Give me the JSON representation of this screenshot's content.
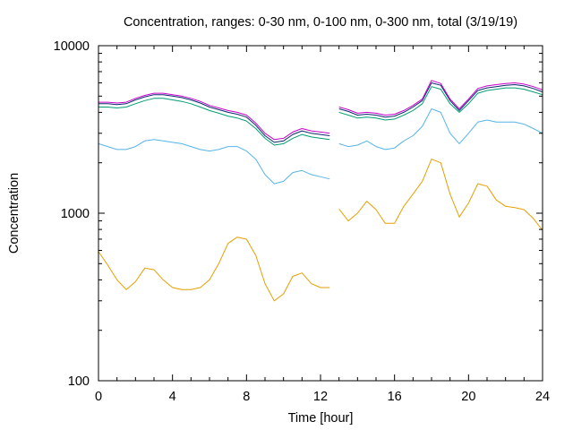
{
  "chart_data": {
    "type": "line",
    "title": "Concentration, ranges: 0-30 nm, 0-100 nm, 0-300 nm, total (3/19/19)",
    "xlabel": "Time [hour]",
    "ylabel": "Concentration",
    "xlim": [
      0,
      24
    ],
    "ylim": [
      100,
      10000
    ],
    "yscale": "log",
    "grid": false,
    "legend": "none",
    "x_ticks": [
      0,
      4,
      8,
      12,
      16,
      20,
      24
    ],
    "y_ticks": [
      100,
      1000,
      10000
    ],
    "x_tick_labels": [
      "0",
      "4",
      "8",
      "12",
      "16",
      "20",
      "24"
    ],
    "y_tick_labels": [
      "100",
      "1000",
      "10000"
    ],
    "series": [
      {
        "color": "#e69f00",
        "x": [
          0,
          0.5,
          1,
          1.5,
          2,
          2.5,
          3,
          3.5,
          4,
          4.5,
          5,
          5.5,
          6,
          6.5,
          7,
          7.5,
          8,
          8.5,
          9,
          9.5,
          10,
          10.5,
          11,
          11.5,
          12,
          12.5,
          null,
          13,
          13.5,
          14,
          14.5,
          15,
          15.5,
          16,
          16.5,
          17,
          17.5,
          18,
          18.5,
          19,
          19.5,
          20,
          20.5,
          21,
          21.5,
          22,
          22.5,
          23,
          23.5,
          24
        ],
        "y": [
          590,
          490,
          400,
          350,
          390,
          470,
          460,
          400,
          360,
          350,
          350,
          360,
          400,
          500,
          660,
          720,
          700,
          560,
          380,
          300,
          330,
          420,
          440,
          380,
          360,
          360,
          null,
          1060,
          900,
          1000,
          1180,
          1050,
          870,
          870,
          1100,
          1300,
          1550,
          2100,
          2000,
          1300,
          950,
          1150,
          1500,
          1450,
          1200,
          1100,
          1080,
          1050,
          930,
          790
        ]
      },
      {
        "color": "#56b4e9",
        "x": [
          0,
          0.5,
          1,
          1.5,
          2,
          2.5,
          3,
          3.5,
          4,
          4.5,
          5,
          5.5,
          6,
          6.5,
          7,
          7.5,
          8,
          8.5,
          9,
          9.5,
          10,
          10.5,
          11,
          11.5,
          12,
          12.5,
          null,
          13,
          13.5,
          14,
          14.5,
          15,
          15.5,
          16,
          16.5,
          17,
          17.5,
          18,
          18.5,
          19,
          19.5,
          20,
          20.5,
          21,
          21.5,
          22,
          22.5,
          23,
          23.5,
          24
        ],
        "y": [
          2600,
          2500,
          2400,
          2400,
          2500,
          2700,
          2750,
          2700,
          2650,
          2600,
          2500,
          2400,
          2350,
          2400,
          2500,
          2500,
          2350,
          2100,
          1700,
          1500,
          1550,
          1750,
          1800,
          1700,
          1650,
          1600,
          null,
          2600,
          2500,
          2550,
          2700,
          2500,
          2400,
          2450,
          2700,
          2900,
          3300,
          4200,
          4000,
          3000,
          2600,
          3000,
          3500,
          3600,
          3500,
          3500,
          3500,
          3400,
          3200,
          3000
        ]
      },
      {
        "color": "#009e73",
        "x": [
          0,
          0.5,
          1,
          1.5,
          2,
          2.5,
          3,
          3.5,
          4,
          4.5,
          5,
          5.5,
          6,
          6.5,
          7,
          7.5,
          8,
          8.5,
          9,
          9.5,
          10,
          10.5,
          11,
          11.5,
          12,
          12.5,
          null,
          13,
          13.5,
          14,
          14.5,
          15,
          15.5,
          16,
          16.5,
          17,
          17.5,
          18,
          18.5,
          19,
          19.5,
          20,
          20.5,
          21,
          21.5,
          22,
          22.5,
          23,
          23.5,
          24
        ],
        "y": [
          4300,
          4300,
          4250,
          4300,
          4500,
          4700,
          4850,
          4850,
          4750,
          4650,
          4500,
          4300,
          4100,
          3950,
          3800,
          3700,
          3550,
          3200,
          2800,
          2550,
          2600,
          2800,
          2950,
          2850,
          2800,
          2750,
          null,
          4000,
          3850,
          3700,
          3750,
          3700,
          3600,
          3650,
          3850,
          4100,
          4500,
          5700,
          5500,
          4500,
          4000,
          4500,
          5200,
          5400,
          5500,
          5600,
          5600,
          5500,
          5300,
          5100
        ]
      },
      {
        "color": "#0a2a6e",
        "x": [
          0,
          0.5,
          1,
          1.5,
          2,
          2.5,
          3,
          3.5,
          4,
          4.5,
          5,
          5.5,
          6,
          6.5,
          7,
          7.5,
          8,
          8.5,
          9,
          9.5,
          10,
          10.5,
          11,
          11.5,
          12,
          12.5,
          null,
          13,
          13.5,
          14,
          14.5,
          15,
          15.5,
          16,
          16.5,
          17,
          17.5,
          18,
          18.5,
          19,
          19.5,
          20,
          20.5,
          21,
          21.5,
          22,
          22.5,
          23,
          23.5,
          24
        ],
        "y": [
          4500,
          4500,
          4450,
          4500,
          4750,
          4950,
          5100,
          5100,
          5000,
          4900,
          4750,
          4550,
          4300,
          4150,
          4000,
          3900,
          3750,
          3350,
          2900,
          2650,
          2700,
          2950,
          3100,
          3000,
          2950,
          2900,
          null,
          4200,
          4050,
          3850,
          3900,
          3850,
          3750,
          3800,
          4000,
          4300,
          4700,
          6000,
          5800,
          4700,
          4100,
          4700,
          5400,
          5600,
          5700,
          5800,
          5850,
          5750,
          5550,
          5300
        ]
      },
      {
        "color": "#cc00cc",
        "x": [
          0,
          0.5,
          1,
          1.5,
          2,
          2.5,
          3,
          3.5,
          4,
          4.5,
          5,
          5.5,
          6,
          6.5,
          7,
          7.5,
          8,
          8.5,
          9,
          9.5,
          10,
          10.5,
          11,
          11.5,
          12,
          12.5,
          null,
          13,
          13.5,
          14,
          14.5,
          15,
          15.5,
          16,
          16.5,
          17,
          17.5,
          18,
          18.5,
          19,
          19.5,
          20,
          20.5,
          21,
          21.5,
          22,
          22.5,
          23,
          23.5,
          24
        ],
        "y": [
          4600,
          4600,
          4550,
          4600,
          4850,
          5050,
          5200,
          5200,
          5100,
          5000,
          4850,
          4650,
          4400,
          4250,
          4100,
          4000,
          3850,
          3450,
          3000,
          2750,
          2800,
          3050,
          3200,
          3100,
          3050,
          3000,
          null,
          4300,
          4150,
          3950,
          4000,
          3950,
          3850,
          3900,
          4100,
          4400,
          4800,
          6200,
          5950,
          4800,
          4200,
          4800,
          5550,
          5750,
          5850,
          5950,
          6000,
          5900,
          5700,
          5450
        ]
      }
    ]
  }
}
